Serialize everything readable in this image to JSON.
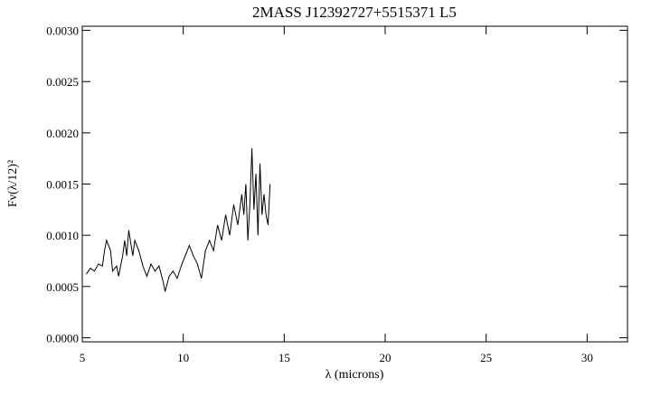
{
  "chart_data": {
    "type": "line",
    "title": "2MASS J12392727+5515371 L5",
    "x_label": "λ (microns)",
    "y_label": "Fν(λ/12)²",
    "xlim": [
      5,
      32
    ],
    "ylim": [
      -4e-05,
      0.00304
    ],
    "xticks": [
      5,
      10,
      15,
      20,
      25,
      30
    ],
    "yticks": [
      {
        "value": 0,
        "label": "0.0000"
      },
      {
        "value": 0.0005,
        "label": "0.0005"
      },
      {
        "value": 0.001,
        "label": "0.0010"
      },
      {
        "value": 0.0015,
        "label": "0.0015"
      },
      {
        "value": 0.002,
        "label": "0.0020"
      },
      {
        "value": 0.0025,
        "label": "0.0025"
      },
      {
        "value": 0.003,
        "label": "0.0030"
      }
    ],
    "series": [
      {
        "color": "#000000",
        "x": [
          5.2,
          5.4,
          5.6,
          5.8,
          6.0,
          6.1,
          6.2,
          6.4,
          6.5,
          6.7,
          6.8,
          7.0,
          7.1,
          7.2,
          7.3,
          7.5,
          7.6,
          7.8,
          8.0,
          8.2,
          8.4,
          8.6,
          8.8,
          9.0,
          9.1,
          9.3,
          9.5,
          9.7,
          9.9,
          10.1,
          10.3,
          10.5,
          10.7,
          10.9,
          11.1,
          11.3,
          11.5,
          11.7,
          11.9,
          12.1,
          12.3,
          12.5,
          12.7,
          12.9,
          13.0,
          13.1,
          13.2,
          13.3,
          13.4,
          13.5,
          13.6,
          13.7,
          13.8,
          13.9,
          14.0,
          14.1,
          14.2,
          14.3
        ],
        "values": [
          0.00062,
          0.00068,
          0.00065,
          0.00072,
          0.0007,
          0.00085,
          0.00095,
          0.00085,
          0.00065,
          0.0007,
          0.0006,
          0.0008,
          0.00095,
          0.0008,
          0.00105,
          0.0008,
          0.00095,
          0.00085,
          0.0007,
          0.0006,
          0.00072,
          0.00065,
          0.0007,
          0.00055,
          0.00045,
          0.0006,
          0.00065,
          0.00058,
          0.0007,
          0.0008,
          0.0009,
          0.0008,
          0.00072,
          0.00058,
          0.00085,
          0.00095,
          0.00085,
          0.0011,
          0.00095,
          0.0012,
          0.001,
          0.0013,
          0.0011,
          0.0014,
          0.0012,
          0.0015,
          0.00095,
          0.0013,
          0.00185,
          0.00125,
          0.0016,
          0.001,
          0.0017,
          0.0012,
          0.0014,
          0.0012,
          0.0011,
          0.0015
        ]
      }
    ]
  }
}
